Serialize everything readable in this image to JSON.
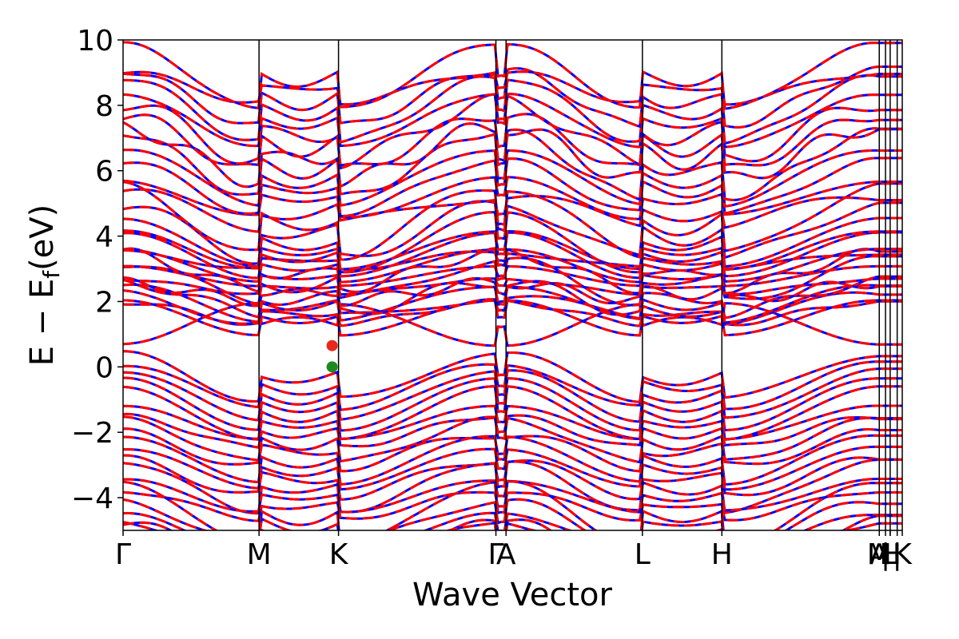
{
  "chart_data": {
    "type": "line",
    "xlabel": "Wave Vector",
    "ylabel_main": "E − E",
    "ylabel_sub": "f",
    "ylabel_unit": "(eV)",
    "ylim": [
      -5,
      10
    ],
    "yticks": [
      {
        "value": 10,
        "label": "10"
      },
      {
        "value": 8,
        "label": "8"
      },
      {
        "value": 6,
        "label": "6"
      },
      {
        "value": 4,
        "label": "4"
      },
      {
        "value": 2,
        "label": "2"
      },
      {
        "value": 0,
        "label": "0"
      },
      {
        "value": -2,
        "label": "−2"
      },
      {
        "value": -4,
        "label": "−4"
      }
    ],
    "kpath": [
      {
        "label": "Γ",
        "x": 0.0
      },
      {
        "label": "M",
        "x": 0.1745
      },
      {
        "label": "K",
        "x": 0.2765
      },
      {
        "label": "Γ",
        "x": 0.4785
      },
      {
        "label": "A",
        "x": 0.4915
      },
      {
        "label": "L",
        "x": 0.6665
      },
      {
        "label": "H",
        "x": 0.7685
      },
      {
        "label": "A",
        "x": 0.9705
      },
      {
        "label": "M",
        "x": 0.9705
      },
      {
        "label": "|",
        "x": 0.9785
      },
      {
        "label": "L",
        "x": 0.9845
      },
      {
        "label": "H",
        "x": 0.9845
      },
      {
        "label": "|",
        "x": 0.9935
      },
      {
        "label": "K",
        "x": 1.0
      }
    ],
    "xlim": [
      0,
      1
    ],
    "legend": "none",
    "grid": false,
    "series": [
      {
        "color": "#0000ff",
        "style": "solid"
      },
      {
        "color": "#ff0000",
        "style": "dashed"
      }
    ],
    "band_edges": [
      {
        "name": "CBM",
        "x": 0.2683,
        "y": 0.65,
        "color": "#e8281c"
      },
      {
        "name": "VBM",
        "x": 0.2683,
        "y": 0.0,
        "color": "#1e8a1e"
      }
    ]
  }
}
